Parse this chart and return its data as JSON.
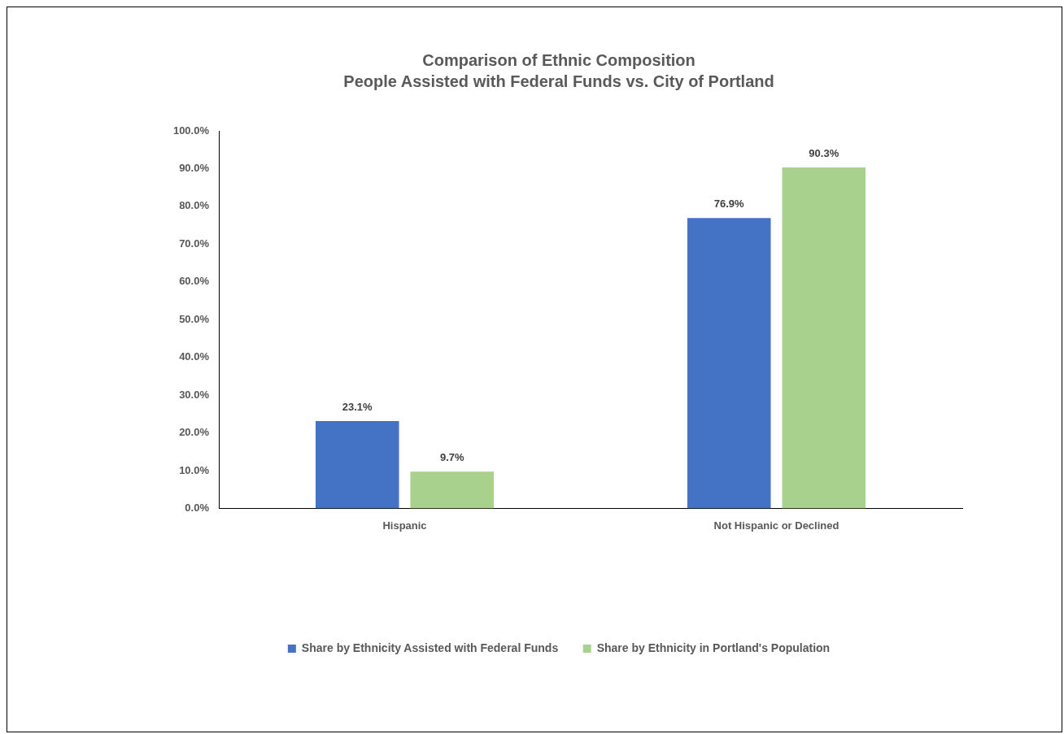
{
  "chart_data": {
    "type": "bar",
    "title": "Comparison of Ethnic Composition",
    "subtitle": "People Assisted with Federal Funds vs. City of Portland",
    "categories": [
      "Hispanic",
      "Not Hispanic or Declined"
    ],
    "series": [
      {
        "name": "Share by Ethnicity Assisted with Federal Funds",
        "color": "#4472c4",
        "values": [
          23.1,
          76.9
        ],
        "value_labels": [
          "23.1%",
          "76.9%"
        ]
      },
      {
        "name": "Share by Ethnicity in Portland's Population",
        "color": "#a9d18e",
        "values": [
          9.7,
          90.3
        ],
        "value_labels": [
          "9.7%",
          "90.3%"
        ]
      }
    ],
    "ylim": [
      0,
      100
    ],
    "yticks": [
      {
        "value": 0,
        "label": "0.0%"
      },
      {
        "value": 10,
        "label": "10.0%"
      },
      {
        "value": 20,
        "label": "20.0%"
      },
      {
        "value": 30,
        "label": "30.0%"
      },
      {
        "value": 40,
        "label": "40.0%"
      },
      {
        "value": 50,
        "label": "50.0%"
      },
      {
        "value": 60,
        "label": "60.0%"
      },
      {
        "value": 70,
        "label": "70.0%"
      },
      {
        "value": 80,
        "label": "80.0%"
      },
      {
        "value": 90,
        "label": "90.0%"
      },
      {
        "value": 100,
        "label": "100.0%"
      }
    ],
    "grid": false,
    "legend": "bottom"
  }
}
